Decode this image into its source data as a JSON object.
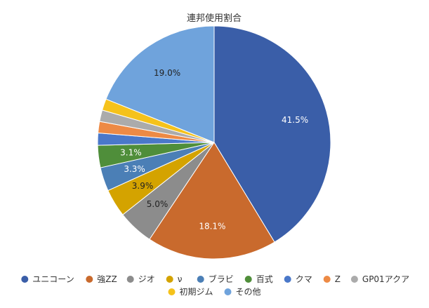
{
  "chart_data": {
    "type": "pie",
    "title": "連邦使用割合",
    "legend_position": "bottom",
    "slices": [
      {
        "name": "ユニコーン",
        "value": 41.5,
        "label": "41.5%",
        "color": "#3a5ea8"
      },
      {
        "name": "強ZZ",
        "value": 18.1,
        "label": "18.1%",
        "color": "#c96a2d"
      },
      {
        "name": "ジオ",
        "value": 5.0,
        "label": "5.0%",
        "color": "#8c8c8c"
      },
      {
        "name": "ν",
        "value": 3.9,
        "label": "3.9%",
        "color": "#d4a300"
      },
      {
        "name": "ブラビ",
        "value": 3.3,
        "label": "3.3%",
        "color": "#4b7fb6"
      },
      {
        "name": "百式",
        "value": 3.1,
        "label": "3.1%",
        "color": "#4f8e3a"
      },
      {
        "name": "クマ",
        "value": 1.7,
        "label": "",
        "color": "#4a78c9"
      },
      {
        "name": "Z",
        "value": 1.6,
        "label": "",
        "color": "#ed8a45"
      },
      {
        "name": "GP01アクア",
        "value": 1.6,
        "label": "",
        "color": "#ababab"
      },
      {
        "name": "初期ジム",
        "value": 1.6,
        "label": "",
        "color": "#f5c21b"
      },
      {
        "name": "その他",
        "value": 19.0,
        "label": "19.0%",
        "color": "#6fa3dc"
      }
    ]
  }
}
